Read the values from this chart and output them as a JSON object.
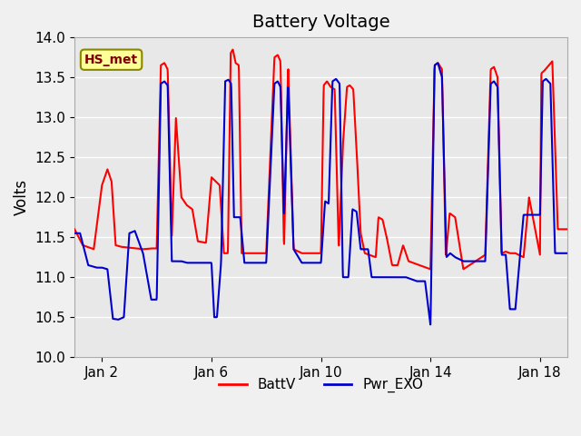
{
  "title": "Battery Voltage",
  "ylabel": "Volts",
  "xlabel": "",
  "ylim": [
    10.0,
    14.0
  ],
  "yticks": [
    10.0,
    10.5,
    11.0,
    11.5,
    12.0,
    12.5,
    13.0,
    13.5,
    14.0
  ],
  "xtick_labels": [
    "Jan 2",
    "Jan 6",
    "Jan 10",
    "Jan 14",
    "Jan 18"
  ],
  "xtick_positions": [
    1,
    5,
    9,
    13,
    17
  ],
  "line1_color": "#ff0000",
  "line2_color": "#0000cc",
  "line1_label": "BattV",
  "line2_label": "Pwr_EXO",
  "line_width": 1.5,
  "background_color": "#e8e8e8",
  "axes_background": "#e8e8e8",
  "legend_box_color": "#ffff99",
  "legend_box_text": "HS_met",
  "legend_box_text_color": "#800000",
  "title_fontsize": 14,
  "axis_label_fontsize": 12,
  "tick_label_fontsize": 11
}
